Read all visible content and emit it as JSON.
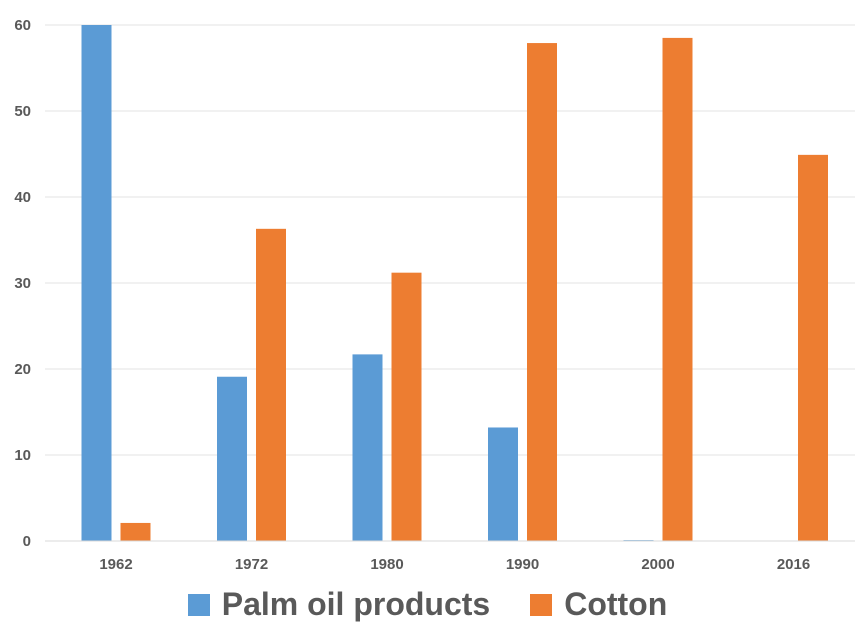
{
  "chart_data": {
    "type": "bar",
    "categories": [
      "1962",
      "1972",
      "1980",
      "1990",
      "2000",
      "2016"
    ],
    "series": [
      {
        "name": "Palm oil products",
        "color": "#5B9BD5",
        "values": [
          60,
          19.1,
          21.7,
          13.2,
          0.1,
          0
        ]
      },
      {
        "name": "Cotton",
        "color": "#ED7D31",
        "values": [
          2.1,
          36.3,
          31.2,
          57.9,
          58.5,
          44.9
        ]
      }
    ],
    "yticks": [
      "0",
      "10",
      "20",
      "30",
      "40",
      "50",
      "60"
    ],
    "ylim": [
      0,
      60
    ],
    "grid": true,
    "legend_position": "bottom",
    "title": "",
    "xlabel": "",
    "ylabel": ""
  }
}
